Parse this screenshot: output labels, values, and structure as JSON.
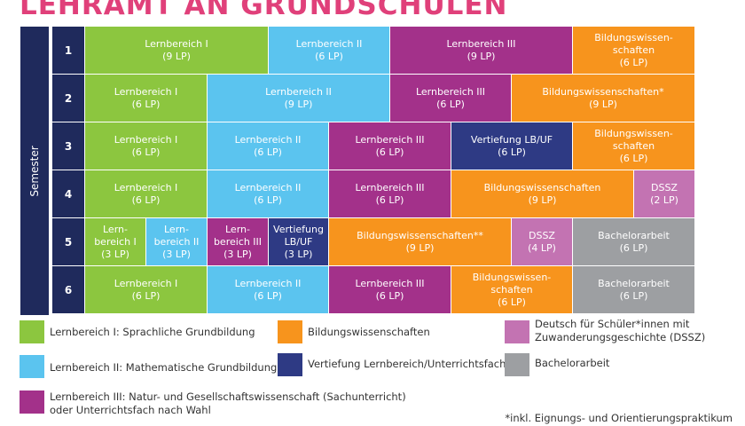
{
  "title": "LEHRAMT AN GRUNDSCHULEN",
  "semester_label": "Semester",
  "rows": [
    {
      "num": "1",
      "cells": [
        {
          "name": "Lernbereich I",
          "lp": "(9 LP)",
          "color": "lb1"
        },
        {
          "name": "Lernbereich II",
          "lp": "(6 LP)",
          "color": "lb2"
        },
        {
          "name": "Lernbereich III",
          "lp": "(9 LP)",
          "color": "lb3"
        },
        {
          "name": "Bildungswissen-\nschaften",
          "lp": "(6 LP)",
          "color": "bw"
        }
      ]
    },
    {
      "num": "2",
      "cells": [
        {
          "name": "Lernbereich I",
          "lp": "(6 LP)",
          "color": "lb1"
        },
        {
          "name": "Lernbereich II",
          "lp": "(9 LP)",
          "color": "lb2"
        },
        {
          "name": "Lernbereich III",
          "lp": "(6 LP)",
          "color": "lb3"
        },
        {
          "name": "Bildungswissenschaften*",
          "lp": "(9 LP)",
          "color": "bw"
        }
      ]
    },
    {
      "num": "3",
      "cells": [
        {
          "name": "Lernbereich I",
          "lp": "(6 LP)",
          "color": "lb1"
        },
        {
          "name": "Lernbereich II",
          "lp": "(6 LP)",
          "color": "lb2"
        },
        {
          "name": "Lernbereich III",
          "lp": "(6 LP)",
          "color": "lb3"
        },
        {
          "name": "Vertiefung LB/UF",
          "lp": "(6 LP)",
          "color": "vert"
        },
        {
          "name": "Bildungswissen-\nschaften",
          "lp": "(6 LP)",
          "color": "bw"
        }
      ]
    },
    {
      "num": "4",
      "cells": [
        {
          "name": "Lernbereich I",
          "lp": "(6 LP)",
          "color": "lb1"
        },
        {
          "name": "Lernbereich II",
          "lp": "(6 LP)",
          "color": "lb2"
        },
        {
          "name": "Lernbereich III",
          "lp": "(6 LP)",
          "color": "lb3"
        },
        {
          "name": "Bildungswissenschaften",
          "lp": "(9 LP)",
          "color": "bw"
        },
        {
          "name": "DSSZ",
          "lp": "(2 LP)",
          "color": "dssz"
        }
      ]
    },
    {
      "num": "5",
      "cells": [
        {
          "name": "Lern-\nbereich I",
          "lp": "(3 LP)",
          "color": "lb1"
        },
        {
          "name": "Lern-\nbereich II",
          "lp": "(3 LP)",
          "color": "lb2"
        },
        {
          "name": "Lern-\nbereich III",
          "lp": "(3 LP)",
          "color": "lb3"
        },
        {
          "name": "Vertiefung\nLB/UF",
          "lp": "(3 LP)",
          "color": "vert"
        },
        {
          "name": "Bildungswissenschaften**",
          "lp": "(9 LP)",
          "color": "bw"
        },
        {
          "name": "DSSZ",
          "lp": "(4 LP)",
          "color": "dssz"
        },
        {
          "name": "Bachelorarbeit",
          "lp": "(6 LP)",
          "color": "ba"
        }
      ]
    },
    {
      "num": "6",
      "cells": [
        {
          "name": "Lernbereich I",
          "lp": "(6 LP)",
          "color": "lb1"
        },
        {
          "name": "Lernbereich II",
          "lp": "(6 LP)",
          "color": "lb2"
        },
        {
          "name": "Lernbereich III",
          "lp": "(6 LP)",
          "color": "lb3"
        },
        {
          "name": "Bildungswissen-\nschaften",
          "lp": "(6 LP)",
          "color": "bw"
        },
        {
          "name": "Bachelorarbeit",
          "lp": "(6 LP)",
          "color": "ba"
        }
      ]
    }
  ],
  "legend": {
    "lb1": "Lernbereich I: Sprachliche Grundbildung",
    "lb2": "Lernbereich II: Mathematische Grundbildung",
    "lb3": "Lernbereich III: Natur- und Gesellschaftswissenschaft (Sachunterricht)\noder Unterrichtsfach nach Wahl",
    "bw": "Bildungswissenschaften",
    "vert": "Vertiefung Lernbereich/Unterrichtsfach",
    "dssz": "Deutsch für Schüler*innen mit\nZuwanderungsgeschichte (DSSZ)",
    "ba": "Bachelorarbeit"
  },
  "colors": {
    "lb1": "#8cc63f",
    "lb2": "#5bc4ef",
    "lb3": "#a3318a",
    "bw": "#f7941d",
    "vert": "#2e3a84",
    "dssz": "#c373b2",
    "ba": "#9d9fa2",
    "title": "#e0407a",
    "semester": "#1f2a5c"
  },
  "footnote": "*inkl. Eignungs- und Orientierungspraktikum"
}
